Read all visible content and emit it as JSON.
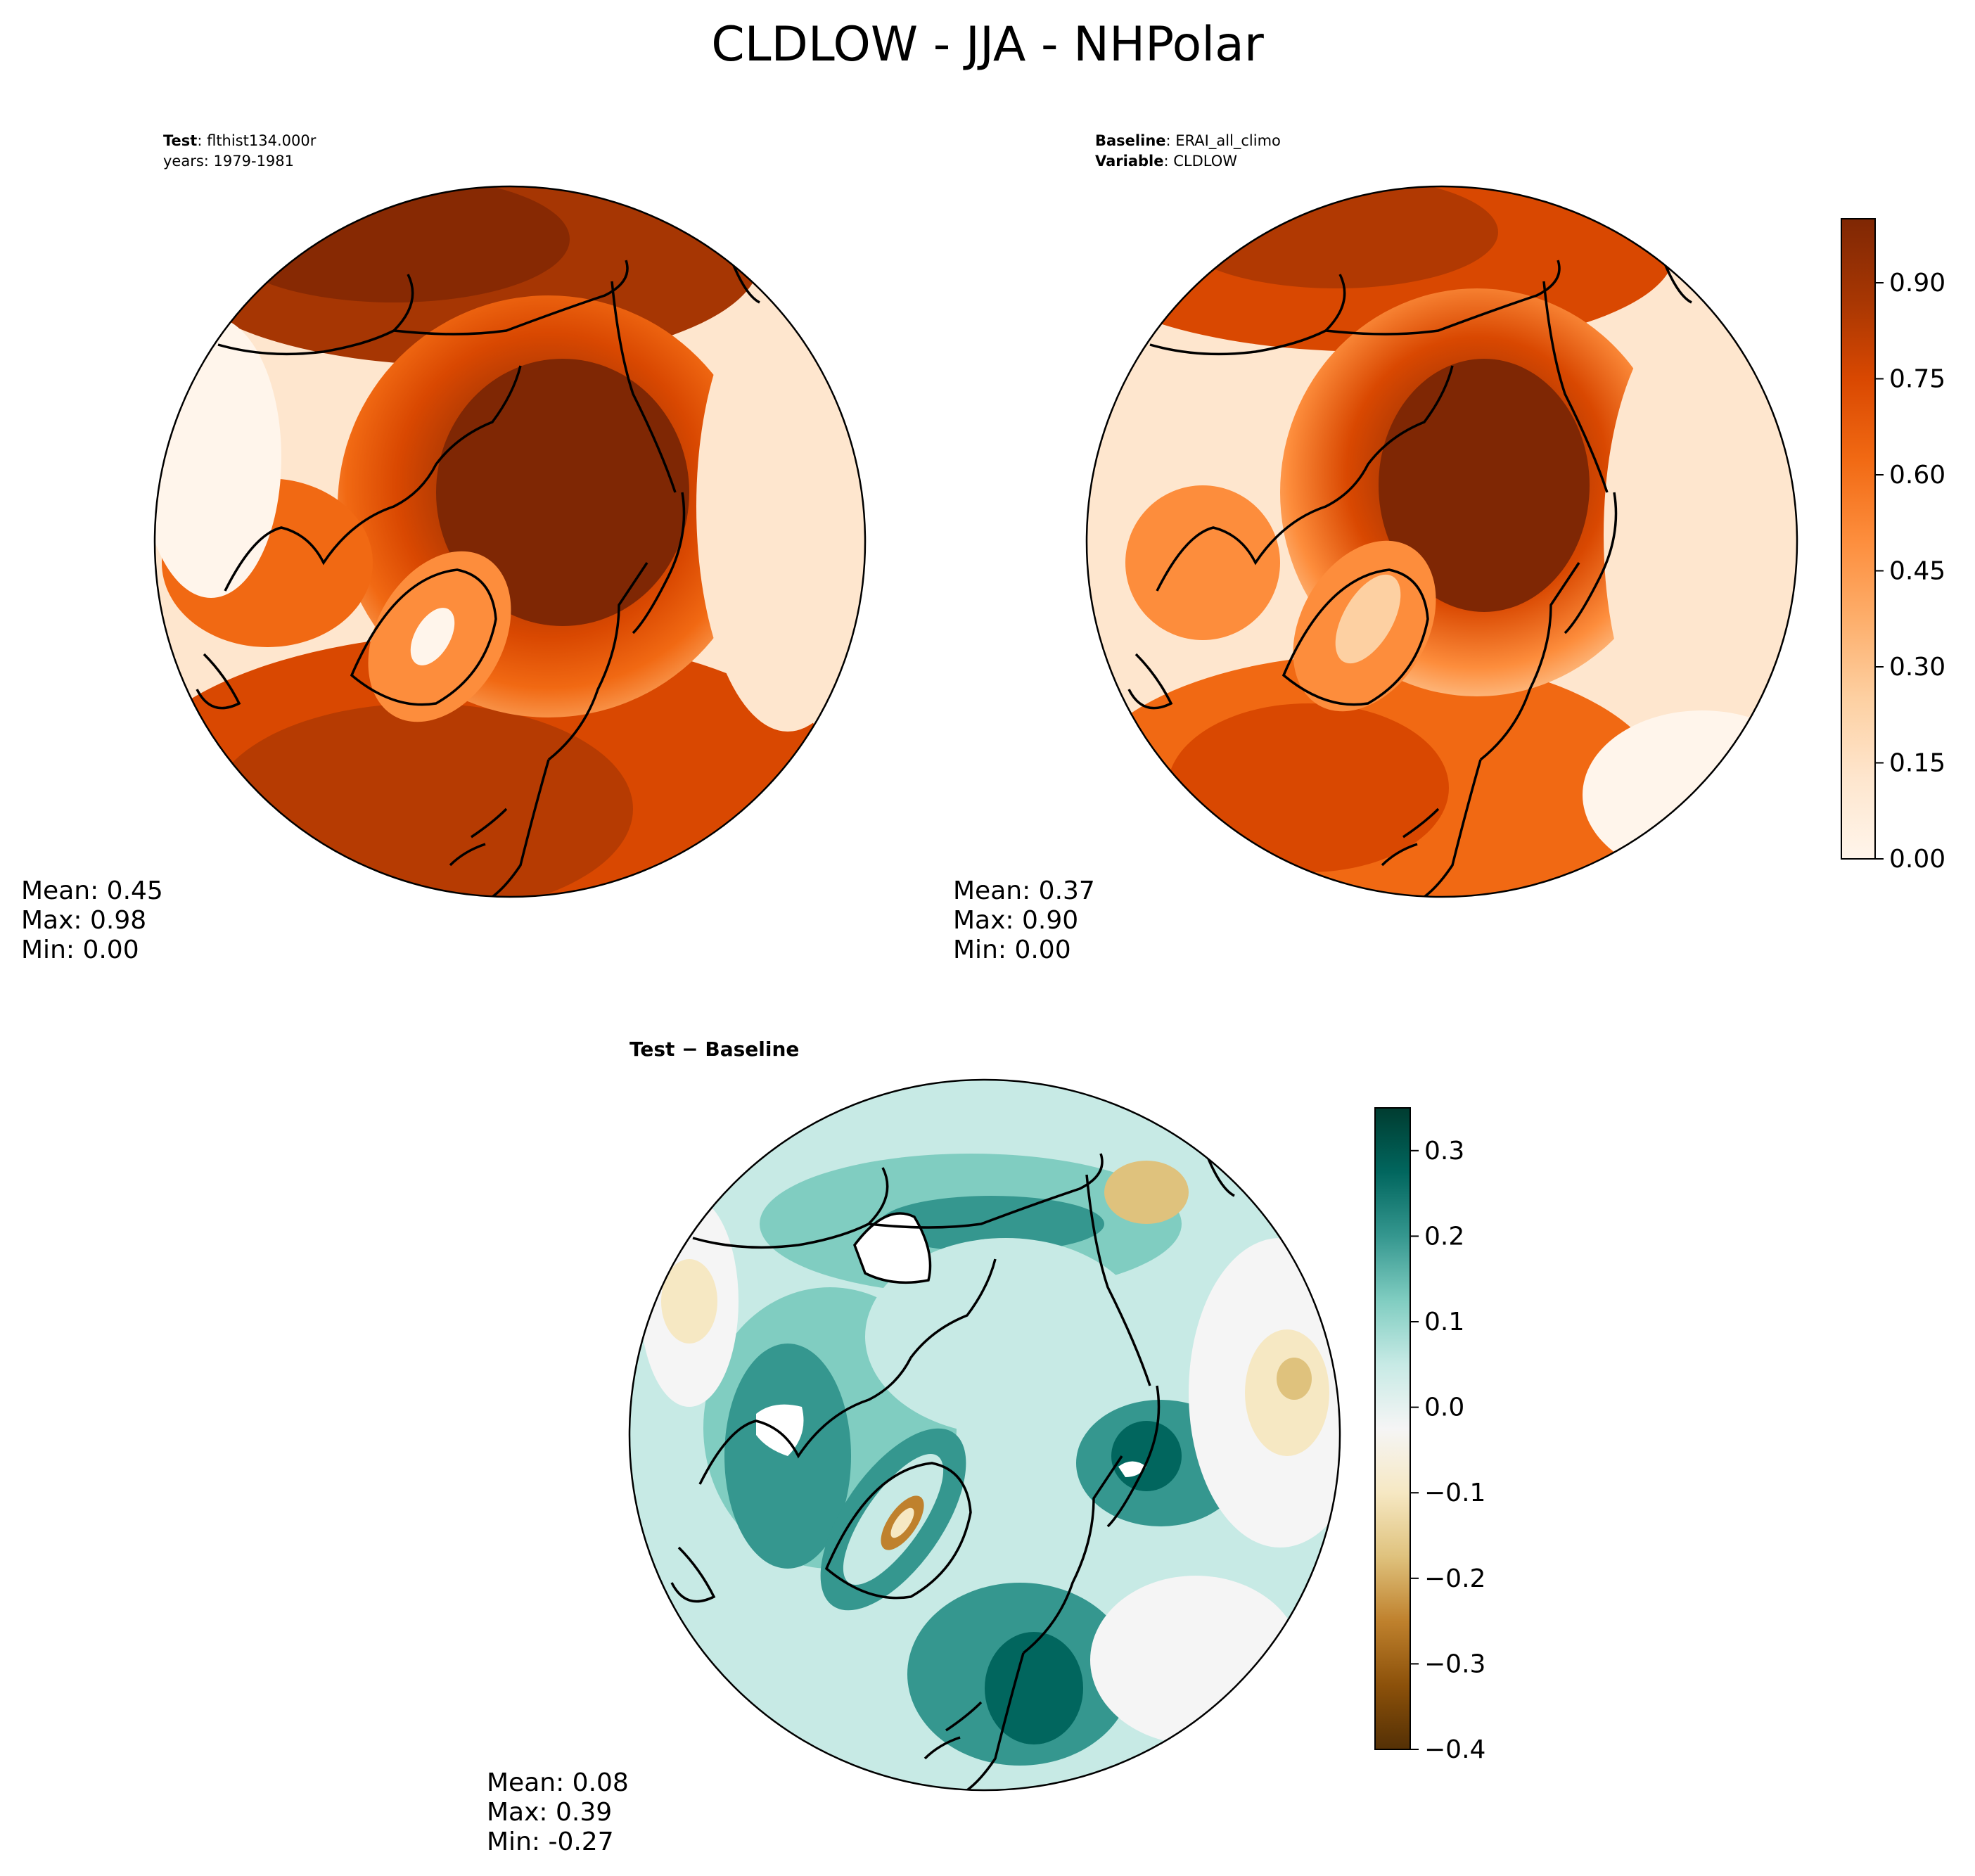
{
  "title": "CLDLOW - JJA - NHPolar",
  "panels": {
    "test": {
      "meta_line1_key": "Test",
      "meta_line1_sep": ": ",
      "meta_line1_value": "flthist134.000r",
      "meta_line2": "years: 1979-1981",
      "stats": {
        "mean": "Mean:  0.45",
        "max": "Max:  0.98",
        "min": "Min:  0.00"
      }
    },
    "baseline": {
      "meta_line1_key": "Baseline",
      "meta_line1_sep": ": ",
      "meta_line1_value": "ERAI_all_climo",
      "meta_line2_key": "Variable",
      "meta_line2_sep": ": ",
      "meta_line2_value": "CLDLOW",
      "stats": {
        "mean": "Mean:  0.37",
        "max": "Max:  0.90",
        "min": "Min:  0.00"
      }
    },
    "diff": {
      "title": "Test − Baseline",
      "stats": {
        "mean": "Mean:  0.08",
        "max": "Max:  0.39",
        "min": "Min: -0.27"
      }
    }
  },
  "colorbars": {
    "main": {
      "colormap": "Oranges",
      "range": [
        0.0,
        1.0
      ],
      "colors": [
        "#fff5eb",
        "#fee6ce",
        "#fdd0a2",
        "#fdae6b",
        "#fd8d3c",
        "#f16913",
        "#d94801",
        "#a63603",
        "#7f2704"
      ],
      "ticks": [
        "0.00",
        "0.15",
        "0.30",
        "0.45",
        "0.60",
        "0.75",
        "0.90"
      ]
    },
    "diff": {
      "colormap": "BrBG",
      "range": [
        -0.4,
        0.35
      ],
      "colors": [
        "#543005",
        "#8c510a",
        "#bf812d",
        "#dfc27d",
        "#f6e8c3",
        "#f5f5f5",
        "#c7eae5",
        "#80cdc1",
        "#35978f",
        "#01665e",
        "#003c30"
      ],
      "ticks": [
        "−0.4",
        "−0.3",
        "−0.2",
        "−0.1",
        "0.0",
        "0.1",
        "0.2",
        "0.3"
      ]
    }
  }
}
